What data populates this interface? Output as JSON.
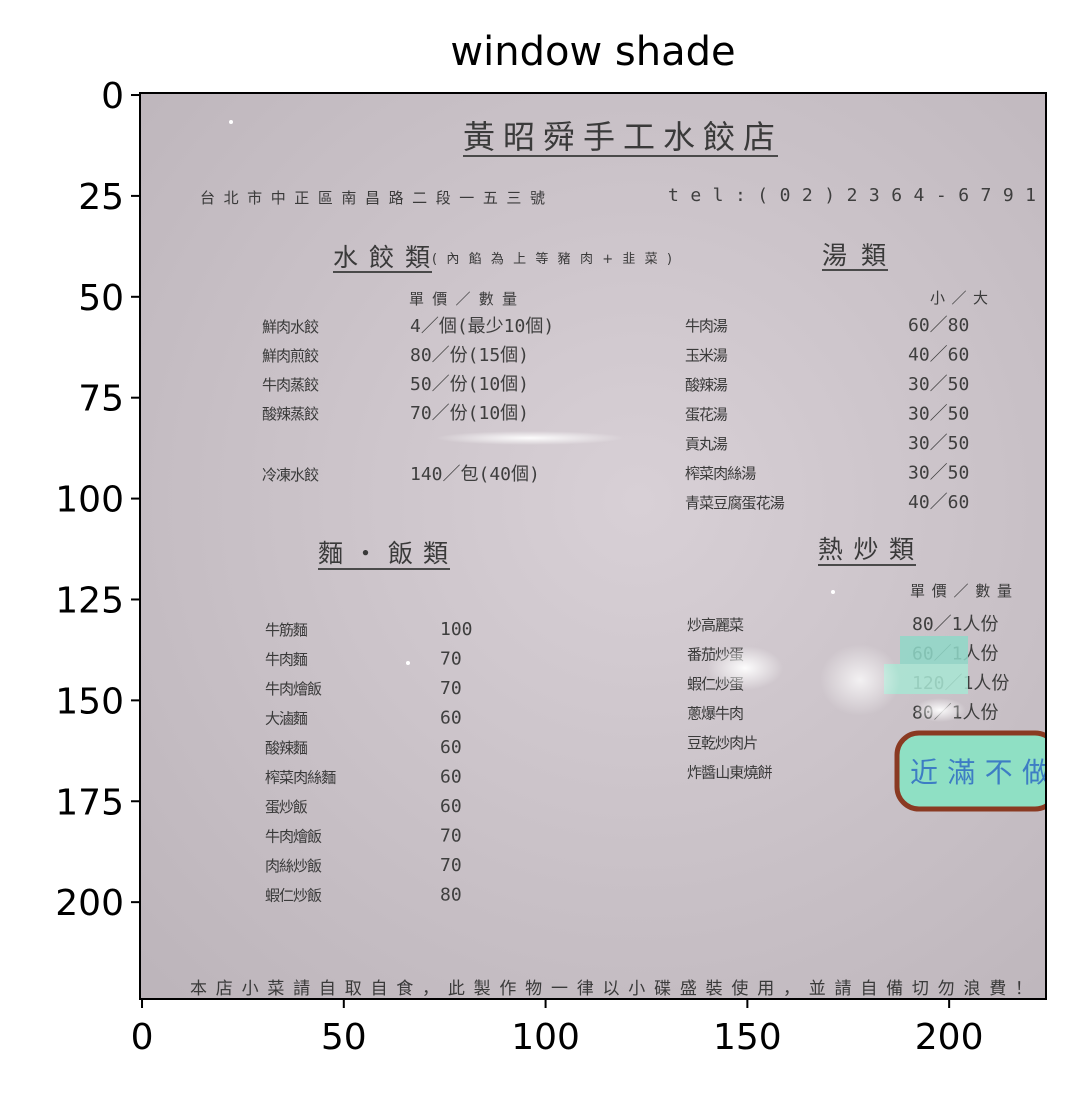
{
  "chart_data": {
    "type": "image",
    "title": "window shade",
    "xlabel": "",
    "ylabel": "",
    "xlim": [
      0,
      224
    ],
    "ylim": [
      224,
      0
    ],
    "xticks": [
      0,
      50,
      100,
      150,
      200
    ],
    "yticks": [
      0,
      25,
      50,
      75,
      100,
      125,
      150,
      175,
      200
    ],
    "grid": false
  },
  "sign": {
    "shop_name": "黃昭舜手工水餃店",
    "address": "台北市中正區南昌路二段一五三號",
    "phone": "tel:(02)2364-6791",
    "dumplings": {
      "heading": "水餃類",
      "note": "(內餡為上等豬肉+韭菜)",
      "col_header": "單價／數量",
      "items": [
        {
          "name": "鮮肉水餃",
          "price": "4／個(最少10個)"
        },
        {
          "name": "鮮肉煎餃",
          "price": "80／份(15個)"
        },
        {
          "name": "牛肉蒸餃",
          "price": "50／份(10個)"
        },
        {
          "name": "酸辣蒸餃",
          "price": "70／份(10個)"
        },
        {
          "name": "冷凍水餃",
          "price": "140／包(40個)"
        }
      ]
    },
    "soups": {
      "heading": "湯類",
      "col_header": "小／大",
      "items": [
        {
          "name": "牛肉湯",
          "price": "60／80"
        },
        {
          "name": "玉米湯",
          "price": "40／60"
        },
        {
          "name": "酸辣湯",
          "price": "30／50"
        },
        {
          "name": "蛋花湯",
          "price": "30／50"
        },
        {
          "name": "貢丸湯",
          "price": "30／50"
        },
        {
          "name": "榨菜肉絲湯",
          "price": "30／50"
        },
        {
          "name": "青菜豆腐蛋花湯",
          "price": "40／60"
        }
      ]
    },
    "noodles": {
      "heading": "麵・飯類",
      "items": [
        {
          "name": "牛筋麵",
          "price": "100"
        },
        {
          "name": "牛肉麵",
          "price": "70"
        },
        {
          "name": "牛肉燴飯",
          "price": "70"
        },
        {
          "name": "大滷麵",
          "price": "60"
        },
        {
          "name": "酸辣麵",
          "price": "60"
        },
        {
          "name": "榨菜肉絲麵",
          "price": "60"
        },
        {
          "name": "蛋炒飯",
          "price": "60"
        },
        {
          "name": "牛肉燴飯",
          "price": "70"
        },
        {
          "name": "肉絲炒飯",
          "price": "70"
        },
        {
          "name": "蝦仁炒飯",
          "price": "80"
        }
      ]
    },
    "stirfry": {
      "heading": "熱炒類",
      "col_header": "單價／數量",
      "items": [
        {
          "name": "炒高麗菜",
          "price": "80／1人份"
        },
        {
          "name": "番茄炒蛋",
          "price": "60／1人份"
        },
        {
          "name": "蝦仁炒蛋",
          "price": "120／1人份"
        },
        {
          "name": "蔥爆牛肉",
          "price": "80／1人份"
        },
        {
          "name": "豆乾炒肉片",
          "price": ""
        },
        {
          "name": "炸醬山東燒餅",
          "price": ""
        }
      ]
    },
    "handwritten_note": "近滿不做",
    "footer": "本店小菜請自取自食，此製作物一律以小碟盛裝使用，並請自備切勿浪費！"
  }
}
